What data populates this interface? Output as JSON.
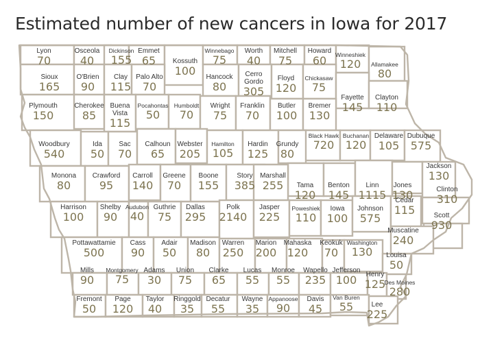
{
  "title": "Estimated number of new cancers in Iowa for 2017",
  "colors": {
    "border": "#bdb5a8",
    "value_text": "#7d7450",
    "name_text": "#343434",
    "title_text": "#2a2a2a"
  },
  "counties": [
    {
      "name": "Lyon",
      "value": "70"
    },
    {
      "name": "Osceola",
      "value": "40"
    },
    {
      "name": "Dickinson",
      "value": "155"
    },
    {
      "name": "Emmet",
      "value": "65"
    },
    {
      "name": "Kossuth",
      "value": "100"
    },
    {
      "name": "Winnebago",
      "value": "75"
    },
    {
      "name": "Worth",
      "value": "40"
    },
    {
      "name": "Mitchell",
      "value": "75"
    },
    {
      "name": "Howard",
      "value": "60"
    },
    {
      "name": "Winneshiek",
      "value": "120"
    },
    {
      "name": "Allamakee",
      "value": "80"
    },
    {
      "name": "Sioux",
      "value": "165"
    },
    {
      "name": "O'Brien",
      "value": "90"
    },
    {
      "name": "Clay",
      "value": "115"
    },
    {
      "name": "Palo Alto",
      "value": "70"
    },
    {
      "name": "Hancock",
      "value": "80"
    },
    {
      "name": "Cerro Gordo",
      "value": "305"
    },
    {
      "name": "Floyd",
      "value": "120"
    },
    {
      "name": "Chickasaw",
      "value": "75"
    },
    {
      "name": "Fayette",
      "value": "145"
    },
    {
      "name": "Clayton",
      "value": "110"
    },
    {
      "name": "Plymouth",
      "value": "150"
    },
    {
      "name": "Cherokee",
      "value": "85"
    },
    {
      "name": "Buena Vista",
      "value": "115"
    },
    {
      "name": "Pocahontas",
      "value": "50"
    },
    {
      "name": "Humboldt",
      "value": "70"
    },
    {
      "name": "Wright",
      "value": "75"
    },
    {
      "name": "Franklin",
      "value": "70"
    },
    {
      "name": "Butler",
      "value": "100"
    },
    {
      "name": "Bremer",
      "value": "130"
    },
    {
      "name": "Black Hawk",
      "value": "720"
    },
    {
      "name": "Buchanan",
      "value": "120"
    },
    {
      "name": "Delaware",
      "value": "105"
    },
    {
      "name": "Dubuque",
      "value": "575"
    },
    {
      "name": "Woodbury",
      "value": "540"
    },
    {
      "name": "Ida",
      "value": "50"
    },
    {
      "name": "Sac",
      "value": "70"
    },
    {
      "name": "Calhoun",
      "value": "65"
    },
    {
      "name": "Webster",
      "value": "205"
    },
    {
      "name": "Hamilton",
      "value": "105"
    },
    {
      "name": "Hardin",
      "value": "125"
    },
    {
      "name": "Grundy",
      "value": "80"
    },
    {
      "name": "Tama",
      "value": "120"
    },
    {
      "name": "Benton",
      "value": "145"
    },
    {
      "name": "Linn",
      "value": "1115"
    },
    {
      "name": "Jones",
      "value": "130"
    },
    {
      "name": "Jackson",
      "value": "130"
    },
    {
      "name": "Monona",
      "value": "80"
    },
    {
      "name": "Crawford",
      "value": "95"
    },
    {
      "name": "Carroll",
      "value": "140"
    },
    {
      "name": "Greene",
      "value": "70"
    },
    {
      "name": "Boone",
      "value": "155"
    },
    {
      "name": "Story",
      "value": "385"
    },
    {
      "name": "Marshall",
      "value": "255"
    },
    {
      "name": "Clinton",
      "value": "310"
    },
    {
      "name": "Harrison",
      "value": "100"
    },
    {
      "name": "Shelby",
      "value": "90"
    },
    {
      "name": "Audubon",
      "value": "40"
    },
    {
      "name": "Guthrie",
      "value": "75"
    },
    {
      "name": "Dallas",
      "value": "295"
    },
    {
      "name": "Polk",
      "value": "2140"
    },
    {
      "name": "Jasper",
      "value": "225"
    },
    {
      "name": "Poweshiek",
      "value": "110"
    },
    {
      "name": "Iowa",
      "value": "100"
    },
    {
      "name": "Johnson",
      "value": "575"
    },
    {
      "name": "Cedar",
      "value": "115"
    },
    {
      "name": "Scott",
      "value": "930"
    },
    {
      "name": "Muscatine",
      "value": "240"
    },
    {
      "name": "Pottawattamie",
      "value": "500"
    },
    {
      "name": "Cass",
      "value": "90"
    },
    {
      "name": "Adair",
      "value": "50"
    },
    {
      "name": "Madison",
      "value": "80"
    },
    {
      "name": "Warren",
      "value": "250"
    },
    {
      "name": "Marion",
      "value": "200"
    },
    {
      "name": "Mahaska",
      "value": "120"
    },
    {
      "name": "Keokuk",
      "value": "70"
    },
    {
      "name": "Washington",
      "value": "130"
    },
    {
      "name": "Louisa",
      "value": "50"
    },
    {
      "name": "Mills",
      "value": "90"
    },
    {
      "name": "Montgomery",
      "value": "75"
    },
    {
      "name": "Adams",
      "value": "30"
    },
    {
      "name": "Union",
      "value": "75"
    },
    {
      "name": "Clarke",
      "value": "65"
    },
    {
      "name": "Lucas",
      "value": "55"
    },
    {
      "name": "Monroe",
      "value": "55"
    },
    {
      "name": "Wapello",
      "value": "235"
    },
    {
      "name": "Jefferson",
      "value": "100"
    },
    {
      "name": "Henry",
      "value": "125"
    },
    {
      "name": "Des Moines",
      "value": "280"
    },
    {
      "name": "Fremont",
      "value": "50"
    },
    {
      "name": "Page",
      "value": "120"
    },
    {
      "name": "Taylor",
      "value": "40"
    },
    {
      "name": "Ringgold",
      "value": "35"
    },
    {
      "name": "Decatur",
      "value": "55"
    },
    {
      "name": "Wayne",
      "value": "35"
    },
    {
      "name": "Appanoose",
      "value": "90"
    },
    {
      "name": "Davis",
      "value": "45"
    },
    {
      "name": "Van Buren",
      "value": "55"
    },
    {
      "name": "Lee",
      "value": "225"
    }
  ]
}
